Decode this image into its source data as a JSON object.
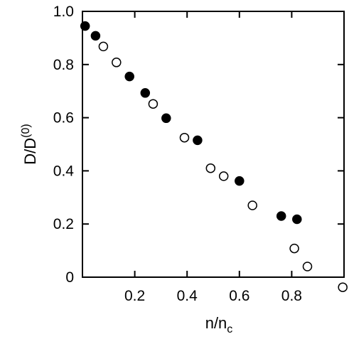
{
  "chart_data": {
    "type": "scatter",
    "title": "",
    "xlabel": {
      "main": "n/n",
      "sub": "c"
    },
    "ylabel": {
      "main": "D/D",
      "sup": "(0)"
    },
    "xlim": [
      0,
      1.0
    ],
    "ylim": [
      0,
      1.0
    ],
    "x_ticks": [
      0.2,
      0.4,
      0.6,
      0.8
    ],
    "x_tick_labels": [
      "0.2",
      "0.4",
      "0.6",
      "0.8"
    ],
    "y_ticks": [
      0,
      0.2,
      0.4,
      0.6,
      0.8,
      1.0
    ],
    "y_tick_labels": [
      "0",
      "0.2",
      "0.4",
      "0.6",
      "0.8",
      "1.0"
    ],
    "grid": false,
    "series": [
      {
        "marker": "filled-circle",
        "color": "#000000",
        "points": [
          {
            "x": 0.01,
            "y": 0.945
          },
          {
            "x": 0.05,
            "y": 0.908
          },
          {
            "x": 0.18,
            "y": 0.755
          },
          {
            "x": 0.24,
            "y": 0.693
          },
          {
            "x": 0.32,
            "y": 0.598
          },
          {
            "x": 0.44,
            "y": 0.515
          },
          {
            "x": 0.6,
            "y": 0.362
          },
          {
            "x": 0.76,
            "y": 0.23
          },
          {
            "x": 0.82,
            "y": 0.218
          }
        ]
      },
      {
        "marker": "open-circle",
        "color": "#000000",
        "points": [
          {
            "x": 0.08,
            "y": 0.868
          },
          {
            "x": 0.13,
            "y": 0.808
          },
          {
            "x": 0.27,
            "y": 0.652
          },
          {
            "x": 0.39,
            "y": 0.525
          },
          {
            "x": 0.49,
            "y": 0.41
          },
          {
            "x": 0.54,
            "y": 0.38
          },
          {
            "x": 0.65,
            "y": 0.27
          },
          {
            "x": 0.81,
            "y": 0.108
          },
          {
            "x": 0.86,
            "y": 0.04
          },
          {
            "x": 0.995,
            "y": -0.038
          }
        ]
      }
    ]
  }
}
